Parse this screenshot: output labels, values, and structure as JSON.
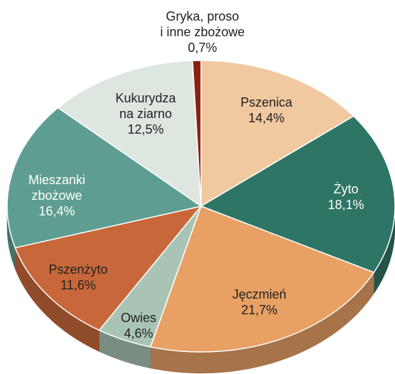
{
  "chart_data": {
    "type": "pie3d",
    "categories": [
      "Pszenica",
      "Żyto",
      "Jęczmień",
      "Owies",
      "Pszenżyto",
      "Mieszanki\nzbożowe",
      "Kukurydza\nna ziarno",
      "Gryka, proso\ni inne zbożowe"
    ],
    "values": [
      14.4,
      18.1,
      21.7,
      4.6,
      11.6,
      16.4,
      12.5,
      0.7
    ],
    "value_labels": [
      "14,4%",
      "18,1%",
      "21,7%",
      "4,6%",
      "11,6%",
      "16,4%",
      "12,5%",
      "0,7%"
    ],
    "colors": [
      "#f0c9a0",
      "#2f7566",
      "#e8a065",
      "#a9c4b4",
      "#c8683a",
      "#5e9e92",
      "#dde7e0",
      "#8b2010"
    ]
  }
}
